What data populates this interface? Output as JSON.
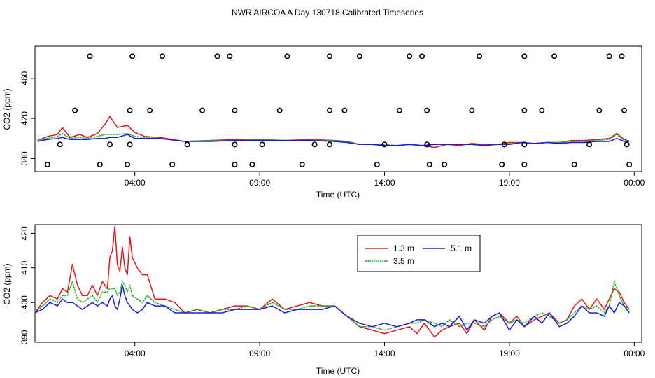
{
  "title": "NWR AIRCOA A  Day 130718  Calibrated Timeseries",
  "colors": {
    "1.3 m": "#e8141a",
    "3.5 m": "#19b419",
    "5.1 m": "#1a1ae6",
    "markers": "#000000"
  },
  "chart_data": [
    {
      "type": "scatter+line",
      "name": "top-panel",
      "xlabel": "Time (UTC)",
      "ylabel": "CO2 (ppm)",
      "xlim": [
        0.0,
        24.3
      ],
      "ylim": [
        367,
        492
      ],
      "xticks": [
        4,
        9,
        14,
        19,
        24
      ],
      "xtick_labels": [
        "04:00",
        "09:00",
        "14:00",
        "19:00",
        "00:00"
      ],
      "yticks": [
        380,
        420,
        460
      ],
      "ytick_labels": [
        "380",
        "420",
        "460"
      ],
      "series": [
        {
          "name": "1.3 m",
          "x": [
            0.1,
            0.5,
            0.9,
            1.1,
            1.4,
            1.8,
            2.1,
            2.5,
            2.8,
            3.0,
            3.3,
            3.7,
            4.0,
            4.4,
            5.0,
            6.0,
            7.0,
            8.0,
            9.0,
            10.0,
            11.0,
            12.0,
            12.5,
            13.0,
            13.5,
            14.0,
            14.5,
            15.0,
            15.5,
            16.0,
            16.5,
            17.0,
            17.5,
            18.0,
            18.5,
            19.0,
            19.5,
            20.0,
            20.5,
            21.0,
            21.5,
            22.0,
            22.5,
            23.0,
            23.3,
            23.6,
            23.8
          ],
          "values": [
            398,
            402,
            404,
            411,
            401,
            404,
            401,
            405,
            414,
            422,
            411,
            413,
            406,
            402,
            401,
            397,
            398,
            399,
            399,
            398,
            399,
            398,
            397,
            394,
            394,
            393,
            393,
            394,
            393,
            391,
            394,
            393,
            395,
            394,
            394,
            396,
            396,
            395,
            396,
            396,
            398,
            398,
            399,
            400,
            405,
            399,
            397
          ]
        },
        {
          "name": "3.5 m",
          "x": [
            0.1,
            0.5,
            0.9,
            1.1,
            1.4,
            1.8,
            2.1,
            2.5,
            2.8,
            3.0,
            3.3,
            3.7,
            4.0,
            4.4,
            5.0,
            6.0,
            7.0,
            8.0,
            9.0,
            10.0,
            11.0,
            12.0,
            12.5,
            13.0,
            13.5,
            14.0,
            14.5,
            15.0,
            15.5,
            16.0,
            16.5,
            17.0,
            17.5,
            18.0,
            18.5,
            19.0,
            19.5,
            20.0,
            20.5,
            21.0,
            21.5,
            22.0,
            22.5,
            23.0,
            23.3,
            23.6,
            23.8
          ],
          "values": [
            398,
            400,
            402,
            405,
            400,
            401,
            400,
            402,
            404,
            404,
            404,
            405,
            402,
            401,
            400,
            397,
            398,
            398,
            399,
            398,
            398,
            398,
            397,
            394,
            394,
            394,
            393,
            394,
            393,
            394,
            394,
            394,
            394,
            393,
            394,
            395,
            396,
            395,
            396,
            396,
            397,
            397,
            398,
            399,
            404,
            398,
            398
          ]
        },
        {
          "name": "5.1 m",
          "x": [
            0.1,
            0.5,
            0.9,
            1.1,
            1.4,
            1.8,
            2.1,
            2.5,
            2.8,
            3.0,
            3.3,
            3.7,
            4.0,
            4.4,
            5.0,
            6.0,
            7.0,
            8.0,
            9.0,
            10.0,
            11.0,
            12.0,
            12.5,
            13.0,
            13.5,
            14.0,
            14.5,
            15.0,
            15.5,
            16.0,
            16.5,
            17.0,
            17.5,
            18.0,
            18.5,
            19.0,
            19.5,
            20.0,
            20.5,
            21.0,
            21.5,
            22.0,
            22.5,
            23.0,
            23.3,
            23.6,
            23.8
          ],
          "values": [
            397,
            399,
            400,
            401,
            399,
            399,
            399,
            400,
            400,
            401,
            401,
            404,
            400,
            400,
            400,
            397,
            397,
            398,
            398,
            398,
            398,
            397,
            396,
            394,
            394,
            393,
            393,
            394,
            393,
            394,
            394,
            394,
            394,
            393,
            394,
            394,
            396,
            395,
            396,
            395,
            396,
            396,
            397,
            397,
            400,
            397,
            397
          ]
        },
        {
          "name": "markers-482",
          "x": [
            2.2,
            3.9,
            5.1,
            7.3,
            7.8,
            10.1,
            11.8,
            13.0,
            15.0,
            15.5,
            17.8,
            19.6,
            20.8,
            23.0,
            23.5
          ],
          "values": [
            482,
            482,
            482,
            482,
            482,
            482,
            482,
            482,
            482,
            482,
            482,
            482,
            482,
            482,
            482
          ]
        },
        {
          "name": "markers-428",
          "x": [
            1.6,
            3.8,
            4.6,
            6.7,
            8.0,
            9.8,
            11.8,
            12.4,
            14.6,
            15.7,
            17.5,
            19.6,
            20.3,
            22.6,
            23.6
          ],
          "values": [
            428,
            428,
            428,
            428,
            428,
            428,
            428,
            428,
            428,
            428,
            428,
            428,
            428,
            428,
            428
          ]
        },
        {
          "name": "markers-394",
          "x": [
            1.0,
            3.0,
            3.8,
            6.1,
            8.0,
            9.1,
            11.2,
            11.8,
            14.0,
            15.7,
            18.8,
            19.6,
            22.2,
            23.7
          ],
          "values": [
            394,
            394,
            394,
            394,
            394,
            394,
            394,
            394,
            394,
            394,
            394,
            394,
            394,
            394
          ]
        },
        {
          "name": "markers-374",
          "x": [
            0.5,
            2.6,
            3.7,
            5.5,
            8.0,
            8.7,
            10.7,
            13.7,
            15.8,
            16.4,
            18.7,
            19.6,
            21.6,
            23.8
          ],
          "values": [
            374,
            374,
            374,
            374,
            374,
            374,
            374,
            374,
            374,
            374,
            374,
            374,
            374,
            374
          ]
        }
      ]
    },
    {
      "type": "line",
      "name": "bottom-panel",
      "xlabel": "Time (UTC)",
      "ylabel": "CO2 (ppm)",
      "xlim": [
        0.0,
        24.3
      ],
      "ylim": [
        388.5,
        422.5
      ],
      "xticks": [
        4,
        9,
        14,
        19,
        24
      ],
      "xtick_labels": [
        "04:00",
        "09:00",
        "14:00",
        "19:00",
        "00:00"
      ],
      "yticks": [
        390,
        400,
        410,
        420
      ],
      "ytick_labels": [
        "390",
        "400",
        "410",
        "420"
      ],
      "legend": {
        "position": "top-center",
        "entries": [
          "1.3 m",
          "3.5 m",
          "5.1 m"
        ]
      },
      "series": [
        {
          "name": "1.3 m",
          "x": [
            0.0,
            0.3,
            0.6,
            0.9,
            1.1,
            1.3,
            1.5,
            1.7,
            1.9,
            2.1,
            2.3,
            2.5,
            2.7,
            2.9,
            3.0,
            3.1,
            3.2,
            3.3,
            3.4,
            3.5,
            3.6,
            3.7,
            3.8,
            3.9,
            4.1,
            4.3,
            4.5,
            4.8,
            5.2,
            5.6,
            6.0,
            6.5,
            7.0,
            7.5,
            8.0,
            8.5,
            9.0,
            9.5,
            10.0,
            10.5,
            11.0,
            11.5,
            12.0,
            12.5,
            13.0,
            13.5,
            14.0,
            14.5,
            15.0,
            15.3,
            15.6,
            16.0,
            16.3,
            16.6,
            17.0,
            17.3,
            17.6,
            18.0,
            18.3,
            18.6,
            19.0,
            19.3,
            19.6,
            20.0,
            20.3,
            20.6,
            21.0,
            21.3,
            21.6,
            21.9,
            22.2,
            22.5,
            22.8,
            23.0,
            23.2,
            23.4,
            23.6,
            23.8
          ],
          "values": [
            397,
            400,
            402,
            401,
            404,
            403,
            411,
            405,
            402,
            402,
            405,
            402,
            406,
            404,
            413,
            415,
            422,
            411,
            409,
            416,
            410,
            408,
            419,
            413,
            410,
            408,
            408,
            401,
            401,
            400,
            397,
            398,
            397,
            398,
            399,
            399,
            398,
            401,
            398,
            399,
            400,
            399,
            399,
            396,
            393,
            392,
            391,
            392,
            393,
            391,
            394,
            390,
            392,
            393,
            394,
            391,
            395,
            392,
            396,
            397,
            394,
            396,
            393,
            395,
            396,
            397,
            394,
            395,
            399,
            401,
            398,
            401,
            398,
            401,
            404,
            403,
            400,
            398
          ]
        },
        {
          "name": "3.5 m",
          "x": [
            0.0,
            0.3,
            0.6,
            0.9,
            1.1,
            1.3,
            1.5,
            1.7,
            1.9,
            2.1,
            2.3,
            2.5,
            2.7,
            2.9,
            3.0,
            3.1,
            3.2,
            3.3,
            3.4,
            3.5,
            3.6,
            3.7,
            3.8,
            3.9,
            4.1,
            4.3,
            4.5,
            4.8,
            5.2,
            5.6,
            6.0,
            6.5,
            7.0,
            7.5,
            8.0,
            8.5,
            9.0,
            9.5,
            10.0,
            10.5,
            11.0,
            11.5,
            12.0,
            12.5,
            13.0,
            13.5,
            14.0,
            14.5,
            15.0,
            15.3,
            15.6,
            16.0,
            16.3,
            16.6,
            17.0,
            17.3,
            17.6,
            18.0,
            18.3,
            18.6,
            19.0,
            19.3,
            19.6,
            20.0,
            20.3,
            20.6,
            21.0,
            21.3,
            21.6,
            21.9,
            22.2,
            22.5,
            22.8,
            23.0,
            23.2,
            23.4,
            23.6,
            23.8
          ],
          "values": [
            397,
            399,
            401,
            400,
            402,
            402,
            406,
            401,
            400,
            401,
            402,
            400,
            403,
            403,
            404,
            404,
            404,
            402,
            403,
            406,
            405,
            403,
            405,
            402,
            401,
            400,
            402,
            400,
            399,
            398,
            397,
            398,
            397,
            398,
            398,
            399,
            398,
            400,
            398,
            398,
            399,
            399,
            399,
            396,
            393,
            393,
            392,
            393,
            394,
            394,
            395,
            394,
            393,
            395,
            393,
            394,
            394,
            393,
            395,
            396,
            394,
            395,
            394,
            396,
            397,
            396,
            394,
            395,
            397,
            399,
            398,
            399,
            397,
            399,
            406,
            402,
            399,
            398
          ]
        },
        {
          "name": "5.1 m",
          "x": [
            0.0,
            0.3,
            0.6,
            0.9,
            1.1,
            1.3,
            1.5,
            1.7,
            1.9,
            2.1,
            2.3,
            2.5,
            2.7,
            2.9,
            3.0,
            3.1,
            3.2,
            3.3,
            3.4,
            3.5,
            3.6,
            3.7,
            3.8,
            3.9,
            4.1,
            4.3,
            4.5,
            4.8,
            5.2,
            5.6,
            6.0,
            6.5,
            7.0,
            7.5,
            8.0,
            8.5,
            9.0,
            9.5,
            10.0,
            10.5,
            11.0,
            11.5,
            12.0,
            12.5,
            13.0,
            13.5,
            14.0,
            14.5,
            15.0,
            15.3,
            15.6,
            16.0,
            16.3,
            16.6,
            17.0,
            17.3,
            17.6,
            18.0,
            18.3,
            18.6,
            19.0,
            19.3,
            19.6,
            20.0,
            20.3,
            20.6,
            21.0,
            21.3,
            21.6,
            21.9,
            22.2,
            22.5,
            22.8,
            23.0,
            23.2,
            23.4,
            23.6,
            23.8
          ],
          "values": [
            397,
            398,
            400,
            399,
            401,
            400,
            400,
            399,
            398,
            399,
            400,
            399,
            400,
            399,
            401,
            402,
            399,
            398,
            401,
            405,
            402,
            400,
            399,
            398,
            397,
            398,
            400,
            399,
            399,
            397,
            397,
            397,
            397,
            397,
            398,
            398,
            398,
            399,
            397,
            398,
            398,
            398,
            399,
            396,
            394,
            393,
            394,
            393,
            394,
            395,
            395,
            393,
            394,
            393,
            396,
            392,
            395,
            394,
            396,
            397,
            392,
            395,
            393,
            396,
            394,
            397,
            393,
            394,
            396,
            399,
            397,
            397,
            396,
            399,
            397,
            400,
            399,
            397
          ]
        }
      ]
    }
  ]
}
